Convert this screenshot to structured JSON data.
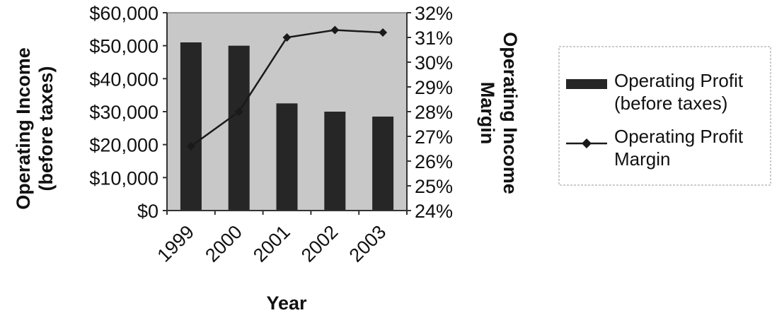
{
  "chart_data": {
    "type": "bar",
    "title": "",
    "categories": [
      "1999",
      "2000",
      "2001",
      "2002",
      "2003"
    ],
    "xlabel": "Year",
    "ylabel": "Operating Income (before taxes)",
    "ylabel_right": "Operating Income Margin",
    "ylim": [
      0,
      60000
    ],
    "ylim_right": [
      24,
      32
    ],
    "y_ticks": [
      "$0",
      "$10,000",
      "$20,000",
      "$30,000",
      "$40,000",
      "$50,000",
      "$60,000"
    ],
    "y_ticks_right": [
      "24%",
      "25%",
      "26%",
      "27%",
      "28%",
      "29%",
      "30%",
      "31%",
      "32%"
    ],
    "series": [
      {
        "name": "Operating Profit (before taxes)",
        "kind": "bar",
        "axis": "left",
        "values": [
          51000,
          50000,
          32500,
          30000,
          28500
        ]
      },
      {
        "name": "Operating Profit Margin",
        "kind": "line",
        "axis": "right",
        "values": [
          26.6,
          28.0,
          31.0,
          31.3,
          31.2
        ]
      }
    ],
    "grid": false,
    "legend": "right",
    "colors": {
      "bar": "#262626",
      "line": "#1a1a1a",
      "plot_bg": "#c8c8c8"
    }
  }
}
